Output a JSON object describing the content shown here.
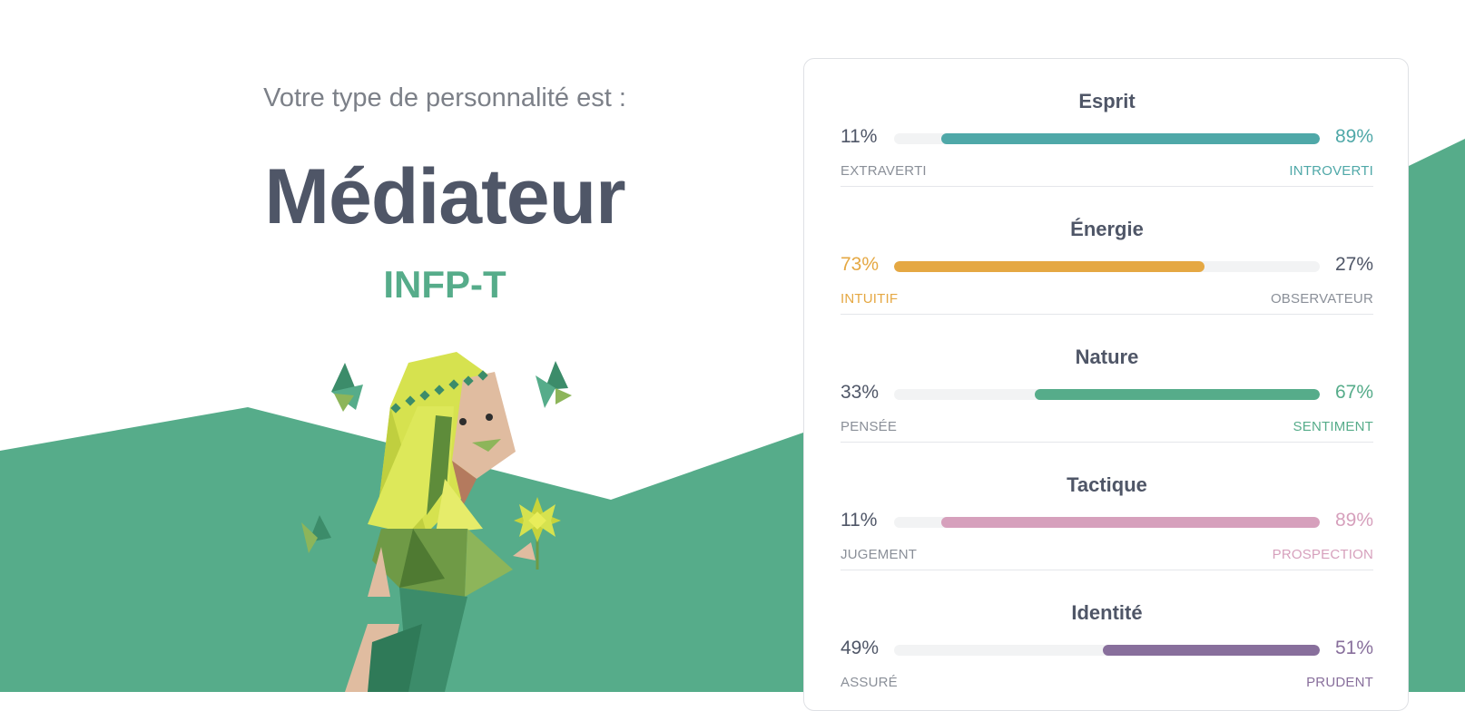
{
  "header": {
    "intro": "Votre type de personnalité est :",
    "type_name": "Médiateur",
    "type_code": "INFP-T"
  },
  "colors": {
    "background_green": "#56ac8a",
    "heading": "#4f5667",
    "muted": "#8a8f98"
  },
  "illustration": {
    "icon": "mediator-character-illustration"
  },
  "traits": [
    {
      "title": "Esprit",
      "left_pct": "11%",
      "right_pct": "89%",
      "left_label": "EXTRAVERTI",
      "right_label": "INTROVERTI",
      "dominant": "right",
      "value": 89,
      "color": "#4fa8a8"
    },
    {
      "title": "Énergie",
      "left_pct": "73%",
      "right_pct": "27%",
      "left_label": "INTUITIF",
      "right_label": "OBSERVATEUR",
      "dominant": "left",
      "value": 73,
      "color": "#e5a843"
    },
    {
      "title": "Nature",
      "left_pct": "33%",
      "right_pct": "67%",
      "left_label": "PENSÉE",
      "right_label": "SENTIMENT",
      "dominant": "right",
      "value": 67,
      "color": "#56ac8a"
    },
    {
      "title": "Tactique",
      "left_pct": "11%",
      "right_pct": "89%",
      "left_label": "JUGEMENT",
      "right_label": "PROSPECTION",
      "dominant": "right",
      "value": 89,
      "color": "#d6a0bc"
    },
    {
      "title": "Identité",
      "left_pct": "49%",
      "right_pct": "51%",
      "left_label": "ASSURÉ",
      "right_label": "PRUDENT",
      "dominant": "right",
      "value": 51,
      "color": "#886f9c"
    }
  ]
}
